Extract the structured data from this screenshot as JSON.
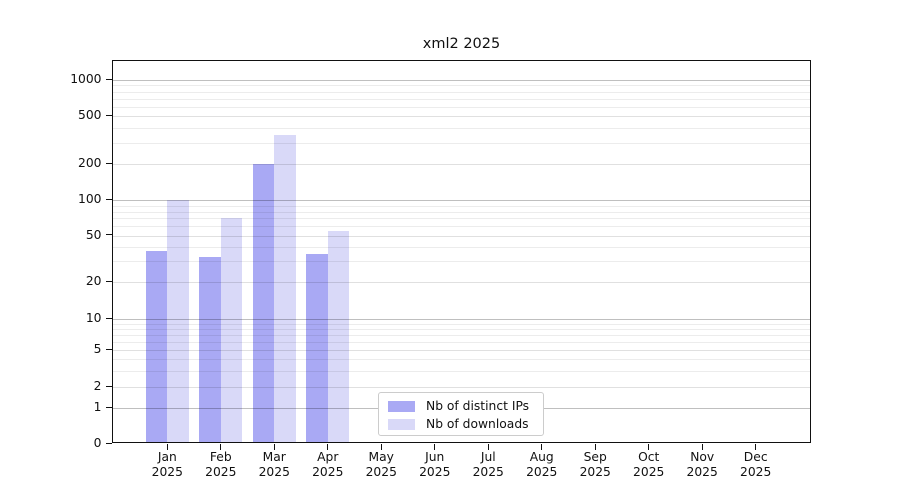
{
  "chart_data": {
    "type": "bar",
    "title": "xml2 2025",
    "categories": [
      "Jan 2025",
      "Feb 2025",
      "Mar 2025",
      "Apr 2025",
      "May 2025",
      "Jun 2025",
      "Jul 2025",
      "Aug 2025",
      "Sep 2025",
      "Oct 2025",
      "Nov 2025",
      "Dec 2025"
    ],
    "month_labels": [
      "Jan",
      "Feb",
      "Mar",
      "Apr",
      "May",
      "Jun",
      "Jul",
      "Aug",
      "Sep",
      "Oct",
      "Nov",
      "Dec"
    ],
    "year_label": "2025",
    "series": [
      {
        "name": "Nb of distinct IPs",
        "color": "#a9a9f4",
        "values": [
          37,
          33,
          200,
          35,
          0,
          0,
          0,
          0,
          0,
          0,
          0,
          0
        ]
      },
      {
        "name": "Nb of downloads",
        "color": "#d9d9f8",
        "values": [
          100,
          70,
          350,
          55,
          0,
          0,
          0,
          0,
          0,
          0,
          0,
          0
        ]
      }
    ],
    "xlabel": "",
    "ylabel": "",
    "y_scale": "log-like (0 shown at baseline)",
    "y_ticks": [
      0,
      1,
      2,
      5,
      10,
      20,
      50,
      100,
      200,
      500,
      1000
    ],
    "y_minor_ticks": [
      3,
      4,
      6,
      7,
      8,
      9,
      30,
      40,
      60,
      70,
      80,
      90,
      300,
      400,
      600,
      700,
      800,
      900
    ],
    "grid": true,
    "legend_position": "inside bottom-center"
  },
  "colors": {
    "distinct_ips": "#a9a9f4",
    "downloads": "#d9d9f8",
    "spine": "#111111",
    "text": "#111111",
    "legend_border": "#cccccc",
    "background": "#ffffff"
  }
}
